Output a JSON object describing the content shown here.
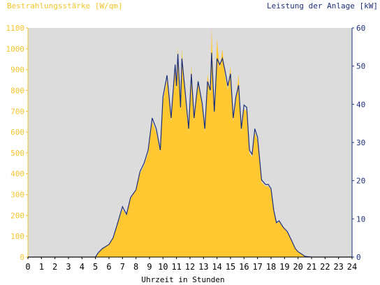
{
  "chart_data": {
    "type": "area",
    "title_left": "Bestrahlungsstärke [W/qm]",
    "title_right": "Leistung der Anlage [kW]",
    "xlabel": "Uhrzeit in Stunden",
    "xlim": [
      0,
      24
    ],
    "ylim_left": [
      0,
      1100
    ],
    "ylim_right": [
      0,
      60
    ],
    "x_ticks": [
      "0",
      "1",
      "2",
      "3",
      "4",
      "5",
      "6",
      "7",
      "8",
      "9",
      "10",
      "11",
      "12",
      "13",
      "14",
      "15",
      "16",
      "17",
      "18",
      "19",
      "20",
      "21",
      "22",
      "23",
      "24"
    ],
    "y_left_ticks": [
      "0",
      "100",
      "200",
      "300",
      "400",
      "500",
      "600",
      "700",
      "800",
      "900",
      "1000",
      "1100"
    ],
    "y_right_ticks": [
      "0",
      "10",
      "20",
      "30",
      "40",
      "50",
      "60"
    ],
    "grid": false,
    "colors": {
      "plot_bg": "#dcdcdc",
      "irradiance_fill": "#ffc830",
      "power_line": "#1d2f7a",
      "left_axis": "#f3c42c",
      "right_axis": "#1d2f7a"
    },
    "series": [
      {
        "name": "Bestrahlungsstärke [W/qm]",
        "axis": "left",
        "x": [
          0,
          5,
          5.2,
          5.5,
          6.0,
          6.3,
          6.6,
          7.0,
          7.3,
          7.6,
          8.0,
          8.3,
          8.6,
          8.9,
          9.2,
          9.5,
          9.8,
          10.0,
          10.3,
          10.6,
          10.9,
          11.0,
          11.1,
          11.3,
          11.4,
          11.6,
          11.9,
          12.1,
          12.3,
          12.6,
          12.9,
          13.1,
          13.3,
          13.5,
          13.6,
          13.8,
          14.0,
          14.2,
          14.4,
          14.6,
          14.8,
          15.0,
          15.2,
          15.4,
          15.6,
          15.8,
          16.0,
          16.2,
          16.4,
          16.6,
          16.8,
          17.0,
          17.3,
          17.6,
          17.8,
          18.0,
          18.2,
          18.4,
          18.6,
          18.9,
          19.2,
          19.5,
          19.8,
          20.0,
          20.3,
          20.5,
          21,
          24
        ],
        "y": [
          0,
          0,
          20,
          40,
          60,
          90,
          150,
          230,
          200,
          280,
          320,
          400,
          440,
          500,
          650,
          600,
          500,
          750,
          850,
          650,
          900,
          800,
          1010,
          700,
          1000,
          800,
          600,
          920,
          650,
          850,
          720,
          600,
          880,
          780,
          1100,
          680,
          1050,
          900,
          1000,
          870,
          800,
          920,
          650,
          750,
          880,
          600,
          710,
          700,
          500,
          480,
          600,
          560,
          360,
          340,
          340,
          320,
          220,
          160,
          170,
          140,
          120,
          80,
          40,
          25,
          12,
          4,
          0,
          0
        ]
      },
      {
        "name": "Leistung der Anlage [kW]",
        "axis": "right",
        "x": [
          0,
          5,
          5.2,
          5.5,
          6.0,
          6.3,
          6.6,
          7.0,
          7.3,
          7.6,
          8.0,
          8.3,
          8.6,
          8.9,
          9.2,
          9.5,
          9.8,
          10.0,
          10.3,
          10.6,
          10.9,
          11.0,
          11.1,
          11.3,
          11.4,
          11.6,
          11.9,
          12.1,
          12.3,
          12.6,
          12.9,
          13.1,
          13.3,
          13.5,
          13.6,
          13.8,
          14.0,
          14.2,
          14.4,
          14.6,
          14.8,
          15.0,
          15.2,
          15.4,
          15.6,
          15.8,
          16.0,
          16.2,
          16.4,
          16.6,
          16.8,
          17.0,
          17.3,
          17.6,
          17.8,
          18.0,
          18.2,
          18.4,
          18.6,
          18.9,
          19.2,
          19.5,
          19.8,
          20.0,
          20.3,
          20.5,
          21,
          24
        ],
        "y": [
          0,
          0,
          1.1,
          2.2,
          3.3,
          5.0,
          8.4,
          13.2,
          11.2,
          15.6,
          17.6,
          22.4,
          24.6,
          28.0,
          36.4,
          33.6,
          28.0,
          42.0,
          47.6,
          36.4,
          50.4,
          44.8,
          53.2,
          39.2,
          52.0,
          44.8,
          33.6,
          48.0,
          36.4,
          46.0,
          40.3,
          33.6,
          46.0,
          43.7,
          53.5,
          38.1,
          52.0,
          50.4,
          52.0,
          48.7,
          44.8,
          48.0,
          36.4,
          42.0,
          45.0,
          33.6,
          39.8,
          39.2,
          28.0,
          26.9,
          33.6,
          31.4,
          20.2,
          19.0,
          19.0,
          17.9,
          12.3,
          9.0,
          9.5,
          7.8,
          6.7,
          4.5,
          2.2,
          1.4,
          0.7,
          0.2,
          0,
          0
        ]
      }
    ]
  }
}
